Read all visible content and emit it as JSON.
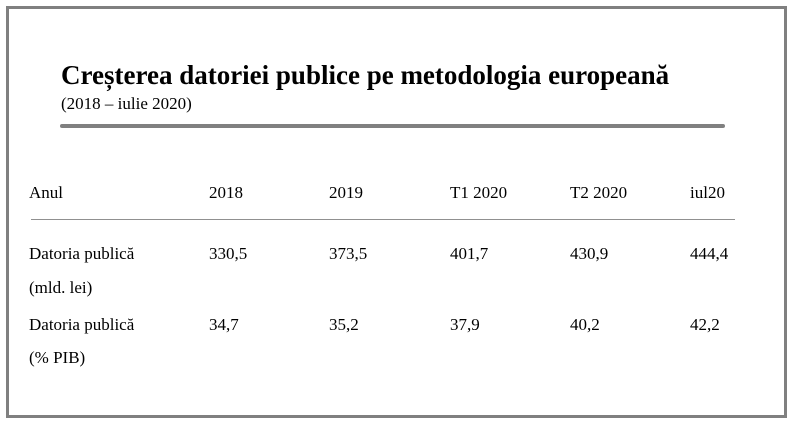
{
  "title": "Creșterea datoriei publice pe metodologia europeană",
  "subtitle": "(2018 – iulie 2020)",
  "table": {
    "header": {
      "label": "Anul",
      "columns": [
        "2018",
        "2019",
        "T1 2020",
        "T2 2020",
        "iul20"
      ]
    },
    "rows": [
      {
        "label_line1": "Datoria publică",
        "label_line2": "(mld. lei)",
        "values": [
          "330,5",
          "373,5",
          "401,7",
          "430,9",
          "444,4"
        ]
      },
      {
        "label_line1": "Datoria publică",
        "label_line2": "(% PIB)",
        "values": [
          "34,7",
          "35,2",
          "37,9",
          "40,2",
          "42,2"
        ]
      }
    ]
  },
  "colors": {
    "frame_border": "#808080",
    "title_rule": "#808080",
    "table_rule": "#909090",
    "text": "#000000"
  }
}
